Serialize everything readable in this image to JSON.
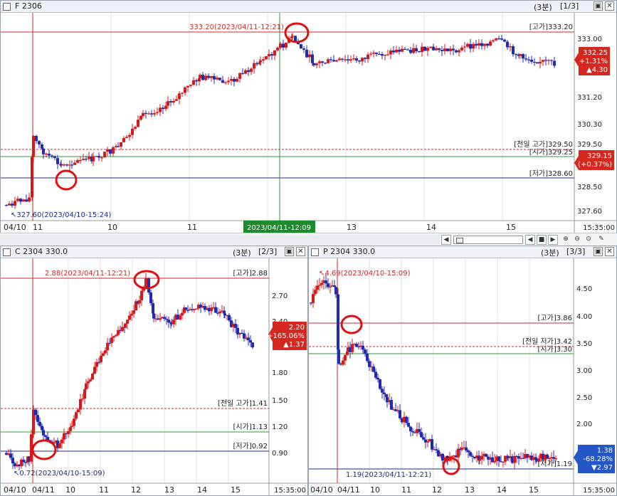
{
  "top": {
    "title": "F 2306",
    "interval": "(3분)",
    "page": "[1/3]",
    "high_label": "[고가]333.20",
    "prev_high_label": "[전일 고가]329.50",
    "open_label": "[시가]329.25",
    "low_label": "[저가]328.60",
    "max_marker": "333.20(2023/04/11-12:21)",
    "min_marker": "327.60(2023/04/10-15:24)",
    "price_ticks": [
      "333.00",
      "331.20",
      "330.30",
      "329.50",
      "328.50",
      "327.60"
    ],
    "current": {
      "price": "332.25",
      "pct": "+1.31%",
      "chg": "▲4.30"
    },
    "ref_box": {
      "price": "329.15",
      "pct": "(+0.37%)"
    },
    "x_labels": [
      "04/10",
      "11",
      "10",
      "11",
      "13",
      "14",
      "15"
    ],
    "cursor_time": "2023/04/11-12:09",
    "time_end": "15:35:00"
  },
  "call": {
    "title": "C 2304 330.0",
    "interval": "(3분)",
    "page": "[2/3]",
    "high_label": "[고가]2.88",
    "prev_high_label": "[전일 고가]1.41",
    "open_label": "[시가]1.13",
    "low_label": "[저가]0.92",
    "max_marker": "2.88(2023/04/11-12:21)",
    "min_marker": "0.72(2023/04/10-15:09)",
    "price_ticks": [
      "2.70",
      "2.40",
      "1.80",
      "1.50",
      "1.20",
      "0.90"
    ],
    "current": {
      "price": "2.20",
      "pct": "+165.06%",
      "chg": "▲1.37"
    },
    "x_labels": [
      "04/10",
      "04/11",
      "10",
      "11",
      "12",
      "13",
      "14",
      "15"
    ],
    "time_end": "15:35:00"
  },
  "put": {
    "title": "P 2304 330.0",
    "interval": "(3분)",
    "page": "[3/3]",
    "high_label": "[고가]3.86",
    "prev_low_label": "[전일 저가]3.42",
    "open_label": "[시가]3.30",
    "low_label": "[저가]1.19",
    "max_marker": "4.69(2023/04/10-15:09)",
    "min_marker": "1.19(2023/04/11-12:21)",
    "price_ticks": [
      "4.50",
      "4.00",
      "3.50",
      "3.00",
      "2.50",
      "2.00"
    ],
    "current": {
      "price": "1.38",
      "pct": "-68.28%",
      "chg": "▼2.97"
    },
    "x_labels": [
      "04/10",
      "04/11",
      "10",
      "11",
      "12",
      "13",
      "14",
      "15"
    ],
    "time_end": "15:35:00"
  },
  "icons": {
    "zoom_in": "zoom-in-icon",
    "zoom_out": "zoom-out-icon",
    "settings": "wrench-icon"
  },
  "colors": {
    "up": "#d7191c",
    "down": "#1f2bb0",
    "high_line": "#cc2a2a",
    "open_line": "#2f9a35",
    "low_line": "#1b2a8c",
    "badge": "#d7261e",
    "badge_put": "#2457c5"
  }
}
